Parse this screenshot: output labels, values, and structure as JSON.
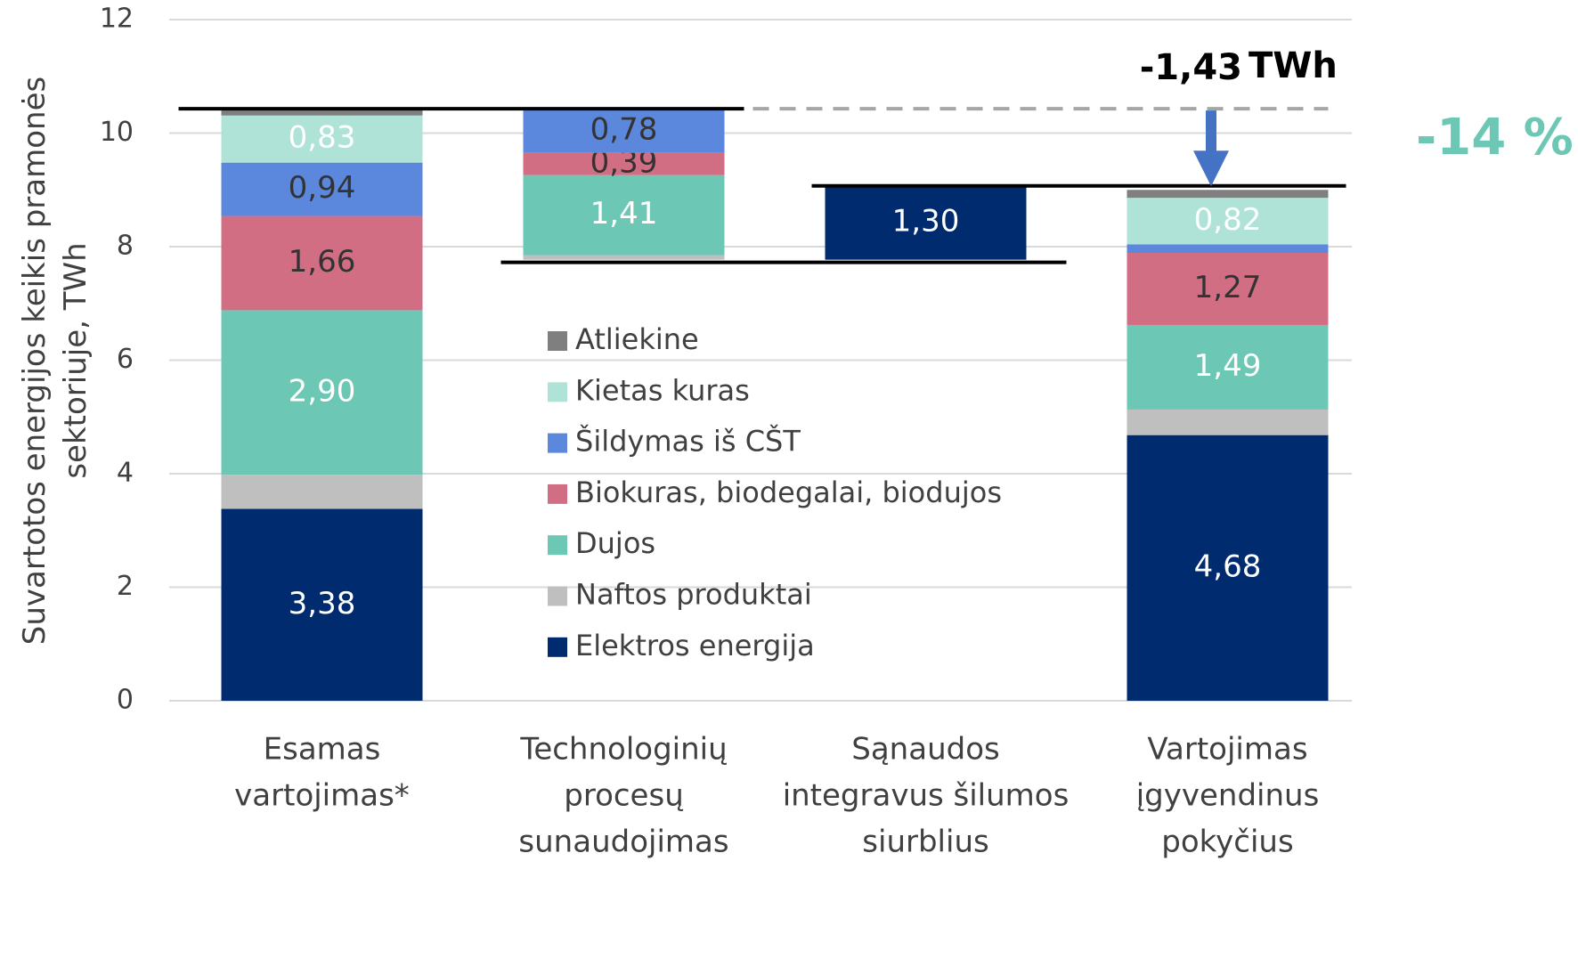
{
  "chart_data": {
    "type": "waterfall",
    "categories": [
      [
        "Esamas",
        "vartojimas*"
      ],
      [
        "Technologinių",
        "procesų",
        "sunaudojimas"
      ],
      [
        "Sąnaudos",
        "integravus šilumos",
        "siurblius"
      ],
      [
        "Vartojimas",
        "įgyvendinus",
        "pokyčius"
      ]
    ],
    "y_label": [
      "Suvartotos energijos keikis pramonės",
      "sektoriuje, TWh"
    ],
    "ylim": [
      0,
      12
    ],
    "yticks": [
      0,
      2,
      4,
      6,
      8,
      10,
      12
    ],
    "grid": true,
    "series": [
      {
        "name": "Elektros energija",
        "color": "#002b6f",
        "label_color": "#ffffff",
        "values": [
          3.38,
          null,
          1.3,
          4.68
        ],
        "value_labels": [
          "3,38",
          null,
          "1,30",
          "4,68"
        ]
      },
      {
        "name": "Naftos produktai",
        "color": "#bfbfbf",
        "label_color": "#333333",
        "values": [
          0.6,
          0.08,
          null,
          0.45
        ],
        "value_labels": [
          null,
          null,
          null,
          null
        ]
      },
      {
        "name": "Dujos",
        "color": "#6cc8b4",
        "label_color": "#ffffff",
        "values": [
          2.9,
          1.41,
          null,
          1.49
        ],
        "value_labels": [
          "2,90",
          "1,41",
          null,
          "1,49"
        ]
      },
      {
        "name": "Biokuras, biodegalai, biodujos",
        "color": "#d26e84",
        "label_color": "#333333",
        "values": [
          1.66,
          0.39,
          null,
          1.27
        ],
        "value_labels": [
          "1,66",
          "0,39",
          null,
          "1,27"
        ]
      },
      {
        "name": "Šildymas iš CŠT",
        "color": "#5b87dd",
        "label_color": "#333333",
        "values": [
          0.94,
          0.78,
          null,
          0.15
        ],
        "value_labels": [
          "0,94",
          "0,78",
          null,
          null
        ]
      },
      {
        "name": "Kietas kuras",
        "color": "#b0e3d8",
        "label_color": "#ffffff",
        "values": [
          0.83,
          null,
          null,
          0.82
        ],
        "value_labels": [
          "0,83",
          null,
          null,
          "0,82"
        ]
      },
      {
        "name": "Atliekine",
        "color": "#7f7f7f",
        "label_color": "#ffffff",
        "values": [
          0.12,
          null,
          null,
          0.14
        ],
        "value_labels": [
          null,
          null,
          null,
          null
        ]
      }
    ],
    "annotations": {
      "change": "-1,43",
      "unit": "TWh",
      "percent": "-14 %"
    }
  }
}
